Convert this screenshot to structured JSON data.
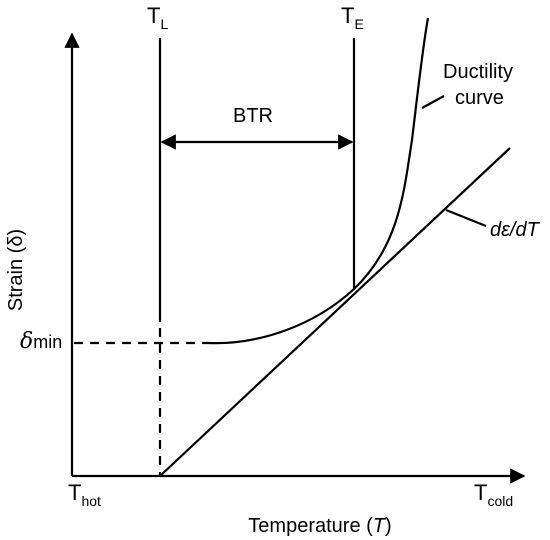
{
  "axes": {
    "y_label": "Strain (δ)",
    "x_label_main": "Temperature (",
    "x_label_var": "T",
    "x_label_close": ")",
    "x_start_base": "T",
    "x_start_sub": "hot",
    "x_end_base": "T",
    "x_end_sub": "cold"
  },
  "markers": {
    "tl_base": "T",
    "tl_sub": "L",
    "te_base": "T",
    "te_sub": "E",
    "btr": "BTR",
    "delta_sym": "δ",
    "delta_sub": "min"
  },
  "curves": {
    "ductility_line1": "Ductility",
    "ductility_line2": "curve",
    "strain_rate": "dε/dT"
  }
}
